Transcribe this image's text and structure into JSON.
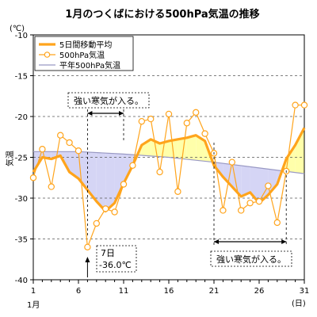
{
  "chart_data": {
    "type": "line",
    "title": "1月のつくばにおける500hPa気温の推移",
    "unit": "(℃)",
    "ylabel": "気温",
    "x_unit": "(日)",
    "x_month": "1月",
    "xlim": [
      1,
      31
    ],
    "ylim": [
      -40,
      -10
    ],
    "x_ticks": [
      1,
      6,
      11,
      16,
      21,
      26,
      31
    ],
    "y_ticks": [
      -10,
      -15,
      -20,
      -25,
      -30,
      -35,
      -40
    ],
    "grid": "horizontal-dashed",
    "legend_position": "top-left",
    "colors": {
      "moving_avg": "#ffa41c",
      "daily": "#ffa41c",
      "normal": "#9999c4",
      "warm_fill": "#ffffaa",
      "cold_fill": "#d5d5f5"
    },
    "series": [
      {
        "name": "5日間移動平均",
        "key": "moving_avg",
        "x": [
          1,
          2,
          3,
          4,
          5,
          6,
          7,
          8,
          9,
          10,
          11,
          12,
          13,
          14,
          15,
          16,
          17,
          18,
          19,
          20,
          21,
          22,
          23,
          24,
          25,
          26,
          27,
          28,
          29,
          30,
          31
        ],
        "values": [
          -26.8,
          -25.0,
          -25.2,
          -24.8,
          -26.8,
          -27.6,
          -29.0,
          -30.4,
          -31.6,
          -30.6,
          -28.2,
          -26.0,
          -23.5,
          -22.8,
          -23.3,
          -23.0,
          -22.8,
          -22.6,
          -22.3,
          -23.0,
          -26.0,
          -27.4,
          -28.6,
          -29.8,
          -29.3,
          -30.6,
          -29.6,
          -28.3,
          -25.2,
          -23.5,
          -21.4
        ]
      },
      {
        "name": "500hPa気温",
        "key": "daily",
        "x": [
          1,
          2,
          3,
          4,
          5,
          6,
          7,
          8,
          9,
          10,
          11,
          12,
          13,
          14,
          15,
          16,
          17,
          18,
          19,
          20,
          21,
          22,
          23,
          24,
          25,
          26,
          27,
          28,
          29,
          30,
          31
        ],
        "values": [
          -27.5,
          -24.0,
          -28.6,
          -22.3,
          -23.2,
          -24.2,
          -36.0,
          -33.1,
          -31.3,
          -31.7,
          -28.3,
          -26.0,
          -20.6,
          -20.3,
          -26.8,
          -19.7,
          -29.2,
          -20.8,
          -19.5,
          -22.1,
          -24.5,
          -31.5,
          -25.6,
          -31.5,
          -30.6,
          -30.4,
          -28.5,
          -33.0,
          -26.7,
          -18.6,
          -18.6
        ]
      },
      {
        "name": "平年500hPa気温",
        "key": "normal",
        "x": [
          1,
          6,
          11,
          16,
          21,
          26,
          31
        ],
        "values": [
          -24.3,
          -24.3,
          -24.6,
          -25.0,
          -25.6,
          -26.3,
          -27.0
        ]
      }
    ],
    "annotations": [
      {
        "text": "強い寒気が入る。",
        "span": [
          7,
          11
        ]
      },
      {
        "text": "強い寒気が入る。",
        "span": [
          21,
          29
        ]
      },
      {
        "line1": "7日",
        "line2": "-36.0℃",
        "x": 7,
        "y": -36.0
      }
    ]
  }
}
